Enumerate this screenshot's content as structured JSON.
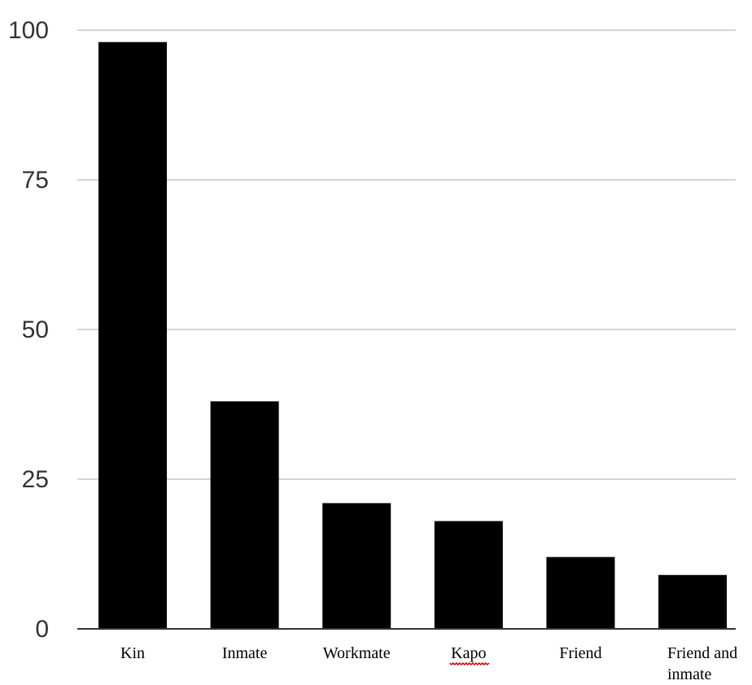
{
  "chart_data": {
    "type": "bar",
    "categories": [
      "Kin",
      "Inmate",
      "Workmate",
      "Kapo",
      "Friend",
      "Friend and inmate"
    ],
    "category_lines": [
      [
        "Kin"
      ],
      [
        "Inmate"
      ],
      [
        "Workmate"
      ],
      [
        "Kapo"
      ],
      [
        "Friend"
      ],
      [
        "Friend and",
        "inmate"
      ]
    ],
    "values": [
      98,
      38,
      21,
      18,
      12,
      9
    ],
    "title": "",
    "xlabel": "",
    "ylabel": "",
    "ylim": [
      0,
      100
    ],
    "yticks": [
      0,
      25,
      50,
      75,
      100
    ],
    "grid": true,
    "bar_color": "#000000",
    "grid_color": "#d9d4cc",
    "spellcheck_marked": [
      "Kapo"
    ]
  }
}
